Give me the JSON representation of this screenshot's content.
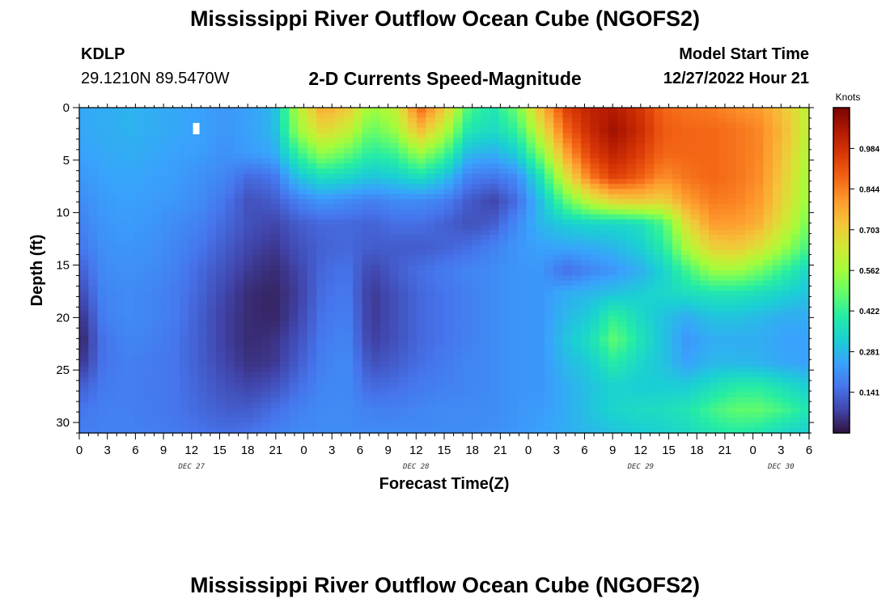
{
  "page": {
    "title_top": "Mississippi River Outflow Ocean Cube (NGOFS2)",
    "station_id": "KDLP",
    "station_coords": "29.1210N  89.5470W",
    "variable_title": "2-D Currents Speed-Magnitude",
    "model_start_label": "Model Start Time",
    "model_start_value": "12/27/2022 Hour 21",
    "title_bottom": "Mississippi River Outflow Ocean Cube (NGOFS2)"
  },
  "chart_data": {
    "type": "heatmap",
    "xlabel": "Forecast Time(Z)",
    "ylabel": "Depth (ft)",
    "x_range_hours": [
      0,
      78
    ],
    "x_tick_labels": [
      "0",
      "3",
      "6",
      "9",
      "12",
      "15",
      "18",
      "21",
      "0",
      "3",
      "6",
      "9",
      "12",
      "15",
      "18",
      "21",
      "0",
      "3",
      "6",
      "9",
      "12",
      "15",
      "18",
      "21",
      "0",
      "3",
      "6"
    ],
    "date_labels": [
      "DEC 27",
      "DEC 28",
      "DEC 29",
      "DEC 30"
    ],
    "y_range": [
      0,
      31
    ],
    "y_ticks": [
      0,
      5,
      10,
      15,
      20,
      25,
      30
    ],
    "y_inverted": true,
    "colorbar": {
      "label": "Knots",
      "range": [
        0,
        1.125
      ],
      "ticks": [
        0.141,
        0.281,
        0.422,
        0.562,
        0.703,
        0.844,
        0.984
      ],
      "colors": [
        "#30123b",
        "#4145ab",
        "#4675ed",
        "#39a2fc",
        "#1bcfd4",
        "#24eca6",
        "#61fc6c",
        "#a4fc3b",
        "#d1e834",
        "#f3c63a",
        "#fe9b2d",
        "#f36315",
        "#d93806",
        "#b11901",
        "#7a0403"
      ]
    },
    "values_knots": [
      [
        0.25,
        0.26,
        0.27,
        0.26,
        0.25,
        0.24,
        0.22,
        0.24,
        0.28,
        0.6,
        0.78,
        0.72,
        0.55,
        0.62,
        0.88,
        0.72,
        0.45,
        0.38,
        0.5,
        0.75,
        0.95,
        1.02,
        1.04,
        0.98,
        0.88,
        0.86,
        0.85,
        0.82,
        0.8,
        0.72,
        0.6
      ],
      [
        0.25,
        0.26,
        0.27,
        0.26,
        0.25,
        0.24,
        0.22,
        0.24,
        0.28,
        0.55,
        0.68,
        0.62,
        0.48,
        0.55,
        0.74,
        0.6,
        0.38,
        0.35,
        0.42,
        0.65,
        0.88,
        1.0,
        1.07,
        1.0,
        0.9,
        0.88,
        0.88,
        0.86,
        0.83,
        0.74,
        0.6
      ],
      [
        0.24,
        0.25,
        0.26,
        0.25,
        0.24,
        0.23,
        0.21,
        0.23,
        0.25,
        0.42,
        0.54,
        0.48,
        0.4,
        0.43,
        0.55,
        0.45,
        0.28,
        0.26,
        0.32,
        0.52,
        0.78,
        0.95,
        1.02,
        0.96,
        0.88,
        0.88,
        0.88,
        0.86,
        0.83,
        0.72,
        0.58
      ],
      [
        0.22,
        0.24,
        0.25,
        0.24,
        0.23,
        0.21,
        0.19,
        0.14,
        0.16,
        0.3,
        0.36,
        0.34,
        0.3,
        0.32,
        0.36,
        0.3,
        0.18,
        0.16,
        0.2,
        0.38,
        0.65,
        0.85,
        0.95,
        0.9,
        0.82,
        0.86,
        0.88,
        0.86,
        0.82,
        0.7,
        0.56
      ],
      [
        0.2,
        0.23,
        0.24,
        0.23,
        0.22,
        0.2,
        0.16,
        0.1,
        0.12,
        0.18,
        0.22,
        0.2,
        0.18,
        0.2,
        0.2,
        0.18,
        0.12,
        0.08,
        0.15,
        0.3,
        0.48,
        0.62,
        0.7,
        0.72,
        0.7,
        0.8,
        0.85,
        0.84,
        0.8,
        0.68,
        0.54
      ],
      [
        0.18,
        0.22,
        0.23,
        0.22,
        0.2,
        0.18,
        0.14,
        0.1,
        0.08,
        0.12,
        0.14,
        0.14,
        0.13,
        0.15,
        0.15,
        0.13,
        0.1,
        0.12,
        0.2,
        0.28,
        0.32,
        0.34,
        0.34,
        0.36,
        0.45,
        0.68,
        0.8,
        0.8,
        0.76,
        0.64,
        0.5
      ],
      [
        0.16,
        0.21,
        0.22,
        0.21,
        0.19,
        0.16,
        0.12,
        0.08,
        0.06,
        0.1,
        0.13,
        0.14,
        0.12,
        0.12,
        0.12,
        0.13,
        0.15,
        0.18,
        0.22,
        0.24,
        0.25,
        0.26,
        0.28,
        0.32,
        0.4,
        0.58,
        0.7,
        0.72,
        0.66,
        0.55,
        0.44
      ],
      [
        0.12,
        0.2,
        0.21,
        0.2,
        0.18,
        0.14,
        0.1,
        0.06,
        0.04,
        0.08,
        0.14,
        0.16,
        0.08,
        0.12,
        0.15,
        0.17,
        0.19,
        0.2,
        0.22,
        0.22,
        0.15,
        0.19,
        0.22,
        0.26,
        0.33,
        0.44,
        0.55,
        0.56,
        0.5,
        0.42,
        0.34
      ],
      [
        0.08,
        0.19,
        0.2,
        0.19,
        0.17,
        0.13,
        0.08,
        0.04,
        0.03,
        0.07,
        0.15,
        0.17,
        0.06,
        0.1,
        0.14,
        0.16,
        0.18,
        0.2,
        0.22,
        0.22,
        0.26,
        0.28,
        0.3,
        0.32,
        0.34,
        0.36,
        0.38,
        0.38,
        0.36,
        0.33,
        0.3
      ],
      [
        0.04,
        0.18,
        0.2,
        0.19,
        0.17,
        0.12,
        0.07,
        0.04,
        0.03,
        0.08,
        0.16,
        0.18,
        0.06,
        0.1,
        0.14,
        0.16,
        0.18,
        0.2,
        0.22,
        0.22,
        0.28,
        0.32,
        0.42,
        0.35,
        0.3,
        0.26,
        0.3,
        0.3,
        0.28,
        0.26,
        0.26
      ],
      [
        0.02,
        0.16,
        0.19,
        0.18,
        0.16,
        0.12,
        0.07,
        0.04,
        0.05,
        0.1,
        0.17,
        0.19,
        0.07,
        0.1,
        0.14,
        0.16,
        0.18,
        0.2,
        0.22,
        0.22,
        0.3,
        0.36,
        0.48,
        0.38,
        0.3,
        0.22,
        0.26,
        0.26,
        0.26,
        0.24,
        0.24
      ],
      [
        0.05,
        0.16,
        0.18,
        0.17,
        0.16,
        0.12,
        0.08,
        0.05,
        0.06,
        0.12,
        0.18,
        0.2,
        0.1,
        0.12,
        0.15,
        0.17,
        0.19,
        0.2,
        0.22,
        0.22,
        0.28,
        0.32,
        0.4,
        0.34,
        0.3,
        0.24,
        0.28,
        0.28,
        0.27,
        0.25,
        0.24
      ],
      [
        0.12,
        0.17,
        0.18,
        0.17,
        0.16,
        0.13,
        0.1,
        0.08,
        0.1,
        0.15,
        0.19,
        0.2,
        0.14,
        0.15,
        0.17,
        0.18,
        0.19,
        0.2,
        0.22,
        0.22,
        0.26,
        0.3,
        0.33,
        0.32,
        0.32,
        0.32,
        0.36,
        0.4,
        0.4,
        0.36,
        0.32
      ],
      [
        0.16,
        0.18,
        0.18,
        0.17,
        0.16,
        0.14,
        0.12,
        0.12,
        0.15,
        0.18,
        0.2,
        0.2,
        0.18,
        0.18,
        0.19,
        0.2,
        0.2,
        0.2,
        0.22,
        0.23,
        0.26,
        0.3,
        0.34,
        0.35,
        0.36,
        0.38,
        0.44,
        0.48,
        0.48,
        0.44,
        0.38
      ],
      [
        0.18,
        0.18,
        0.18,
        0.18,
        0.17,
        0.16,
        0.15,
        0.16,
        0.18,
        0.2,
        0.2,
        0.2,
        0.2,
        0.2,
        0.2,
        0.2,
        0.2,
        0.21,
        0.22,
        0.24,
        0.26,
        0.28,
        0.3,
        0.32,
        0.33,
        0.35,
        0.38,
        0.4,
        0.38,
        0.34,
        0.32
      ]
    ],
    "markers": [
      {
        "x": 12.5,
        "y": 2,
        "type": "white-rect"
      }
    ]
  }
}
